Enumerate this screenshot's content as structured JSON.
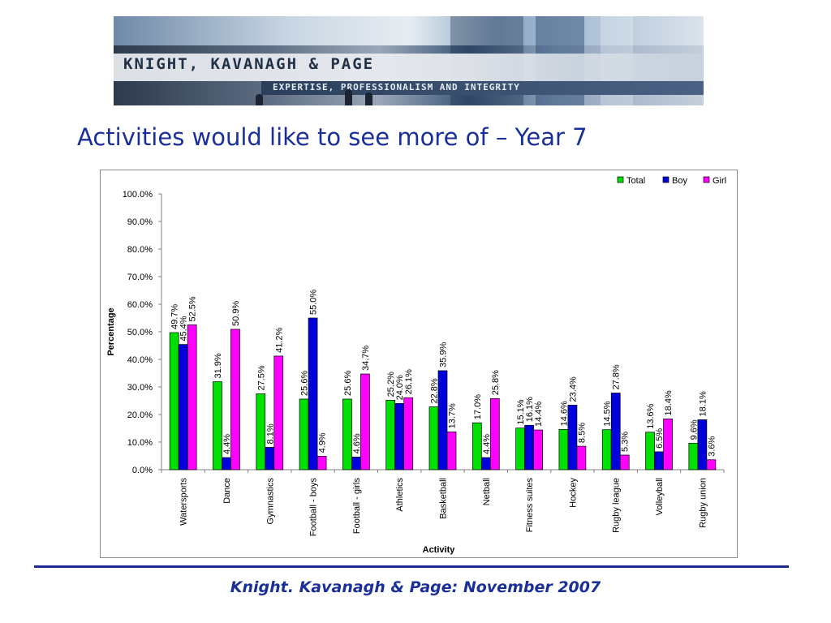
{
  "header": {
    "company_name": "KNIGHT, KAVANAGH & PAGE",
    "tagline": "EXPERTISE, PROFESSIONALISM AND INTEGRITY"
  },
  "slide": {
    "title": "Activities would like to see more of – Year 7"
  },
  "footer": {
    "text": "Knight. Kavanagh & Page: November 2007"
  },
  "colors": {
    "title": "#1b2f9a",
    "total": "#00e000",
    "boy": "#0000dd",
    "girl": "#ff00ff"
  },
  "chart_data": {
    "type": "bar",
    "title": "",
    "xlabel": "Activity",
    "ylabel": "Percentage",
    "ylim": [
      0,
      100
    ],
    "y_ticks": [
      "0.0%",
      "10.0%",
      "20.0%",
      "30.0%",
      "40.0%",
      "50.0%",
      "60.0%",
      "70.0%",
      "80.0%",
      "90.0%",
      "100.0%"
    ],
    "grid": false,
    "legend_position": "top-right",
    "categories": [
      "Watersports",
      "Dance",
      "Gymnastics",
      "Football - boys",
      "Football - girls",
      "Athletics",
      "Basketball",
      "Netball",
      "Fitness suites",
      "Hockey",
      "Rugby league",
      "Volleyball",
      "Rugby union"
    ],
    "series": [
      {
        "name": "Total",
        "color": "#00e000",
        "values": [
          49.7,
          31.9,
          27.5,
          25.6,
          25.6,
          25.2,
          22.8,
          17.0,
          15.1,
          14.6,
          14.5,
          13.6,
          9.6
        ],
        "labels": [
          "49.7%",
          "31.9%",
          "27.5%",
          "25.6%",
          "25.6%",
          "25.2%",
          "22.8%",
          "17.0%",
          "15.1%",
          "14.6%",
          "14.5%",
          "13.6%",
          "9.6%"
        ]
      },
      {
        "name": "Boy",
        "color": "#0000dd",
        "values": [
          45.4,
          4.4,
          8.1,
          55.0,
          4.6,
          24.0,
          35.9,
          4.4,
          16.1,
          23.4,
          27.8,
          6.5,
          18.1
        ],
        "labels": [
          "45.4%",
          "4.4%",
          "8.1%",
          "55.0%",
          "4.6%",
          "24.0%",
          "35.9%",
          "4.4%",
          "16.1%",
          "23.4%",
          "27.8%",
          "6.5%",
          "18.1%"
        ]
      },
      {
        "name": "Girl",
        "color": "#ff00ff",
        "values": [
          52.5,
          50.9,
          41.2,
          4.9,
          34.7,
          26.1,
          13.7,
          25.8,
          14.4,
          8.5,
          5.3,
          18.4,
          3.6
        ],
        "labels": [
          "52.5%",
          "50.9%",
          "41.2%",
          "4.9%",
          "34.7%",
          "26.1%",
          "13.7%",
          "25.8%",
          "14.4%",
          "8.5%",
          "5.3%",
          "18.4%",
          "3.6%"
        ]
      }
    ]
  }
}
